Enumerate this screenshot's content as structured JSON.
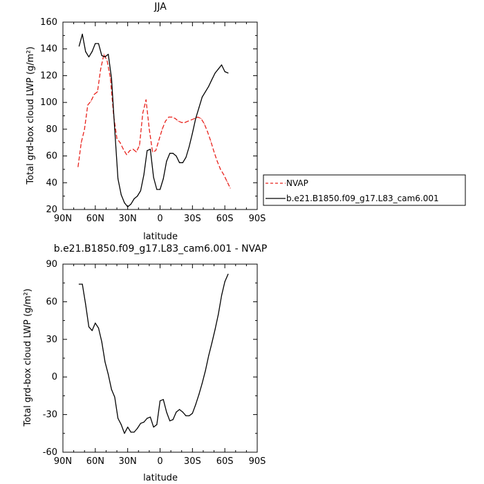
{
  "chart_data": [
    {
      "type": "line",
      "title": "JJA",
      "xlabel": "latitude",
      "ylabel": "Total grd-box cloud LWP (g/m²)",
      "xlim": [
        90,
        -90
      ],
      "ylim": [
        20,
        160
      ],
      "xticks": [
        {
          "value": 90,
          "label": "90N"
        },
        {
          "value": 60,
          "label": "60N"
        },
        {
          "value": 30,
          "label": "30N"
        },
        {
          "value": 0,
          "label": "0"
        },
        {
          "value": -30,
          "label": "30S"
        },
        {
          "value": -60,
          "label": "60S"
        },
        {
          "value": -90,
          "label": "90S"
        }
      ],
      "yticks": [
        20,
        40,
        60,
        80,
        100,
        120,
        140,
        160
      ],
      "grid": false,
      "legend_position": "right",
      "series": [
        {
          "name": "NVAP",
          "color": "#e8201a",
          "style": "dashed",
          "x": [
            76,
            73,
            70,
            67,
            64,
            61,
            58,
            55,
            52,
            49,
            46,
            43,
            40,
            37,
            34,
            31,
            28,
            25,
            22,
            19,
            16,
            13,
            10,
            7,
            4,
            1,
            -2,
            -5,
            -8,
            -11,
            -14,
            -17,
            -20,
            -23,
            -26,
            -29,
            -32,
            -35,
            -38,
            -41,
            -44,
            -47,
            -50,
            -53,
            -56,
            -59,
            -62,
            -65
          ],
          "y": [
            52,
            70,
            80,
            98,
            101,
            106,
            108,
            125,
            136,
            131,
            118,
            90,
            73,
            70,
            65,
            61,
            64,
            65,
            63,
            68,
            92,
            102,
            80,
            63,
            64,
            72,
            80,
            86,
            89,
            89,
            88,
            86,
            85,
            85,
            86,
            87,
            88,
            89,
            88,
            84,
            78,
            71,
            63,
            56,
            50,
            46,
            41,
            36
          ]
        },
        {
          "name": "b.e21.B1850.f09_g17.L83_cam6.001",
          "color": "#000000",
          "style": "solid",
          "x": [
            75,
            72,
            69,
            66,
            63,
            60,
            57,
            54,
            51,
            48,
            45,
            42,
            39,
            36,
            33,
            30,
            27,
            24,
            21,
            18,
            15,
            12,
            9,
            6,
            3,
            0,
            -3,
            -6,
            -9,
            -12,
            -15,
            -18,
            -21,
            -24,
            -27,
            -30,
            -33,
            -36,
            -39,
            -42,
            -45,
            -48,
            -51,
            -54,
            -57,
            -60,
            -63
          ],
          "y": [
            142,
            151,
            138,
            134,
            138,
            144,
            144,
            135,
            134,
            136,
            118,
            80,
            43,
            31,
            25,
            22,
            24,
            28,
            30,
            34,
            46,
            64,
            65,
            44,
            35,
            35,
            43,
            56,
            62,
            62,
            60,
            55,
            55,
            59,
            67,
            77,
            88,
            96,
            104,
            108,
            112,
            117,
            122,
            125,
            128,
            123,
            122
          ]
        }
      ]
    },
    {
      "type": "line",
      "title": "b.e21.B1850.f09_g17.L83_cam6.001 - NVAP",
      "xlabel": "latitude",
      "ylabel": "Total grd-box cloud LWP (g/m²)",
      "xlim": [
        90,
        -90
      ],
      "ylim": [
        -60,
        90
      ],
      "xticks": [
        {
          "value": 90,
          "label": "90N"
        },
        {
          "value": 60,
          "label": "60N"
        },
        {
          "value": 30,
          "label": "30N"
        },
        {
          "value": 0,
          "label": "0"
        },
        {
          "value": -30,
          "label": "30S"
        },
        {
          "value": -60,
          "label": "60S"
        },
        {
          "value": -90,
          "label": "90S"
        }
      ],
      "yticks": [
        -60,
        -30,
        0,
        30,
        60,
        90
      ],
      "grid": false,
      "series": [
        {
          "color": "#000000",
          "style": "solid",
          "x": [
            75,
            72,
            69,
            66,
            63,
            60,
            57,
            54,
            51,
            48,
            45,
            42,
            39,
            36,
            33,
            30,
            27,
            24,
            21,
            18,
            15,
            12,
            9,
            6,
            3,
            0,
            -3,
            -6,
            -9,
            -12,
            -15,
            -18,
            -21,
            -24,
            -27,
            -30,
            -33,
            -36,
            -39,
            -42,
            -45,
            -48,
            -51,
            -54,
            -57,
            -60,
            -63
          ],
          "y": [
            74,
            74,
            58,
            40,
            37,
            43,
            39,
            28,
            12,
            2,
            -10,
            -16,
            -33,
            -38,
            -45,
            -40,
            -44,
            -44,
            -41,
            -37,
            -36,
            -33,
            -32,
            -40,
            -38,
            -19,
            -18,
            -28,
            -35,
            -34,
            -28,
            -26,
            -28,
            -31,
            -31,
            -29,
            -22,
            -14,
            -5,
            5,
            17,
            27,
            38,
            50,
            65,
            76,
            82
          ]
        }
      ]
    }
  ]
}
